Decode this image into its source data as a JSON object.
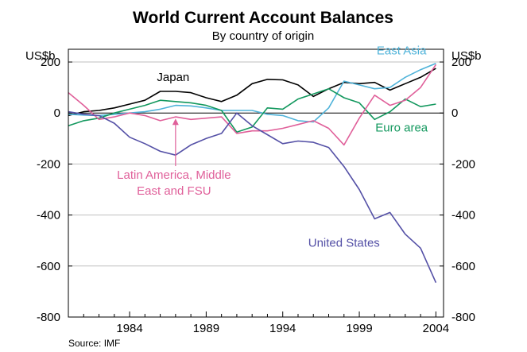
{
  "chart_data": {
    "type": "line",
    "title": "World Current Account Balances",
    "subtitle": "By country of origin",
    "left_unit": "US$b",
    "right_unit": "US$b",
    "source": "Source: IMF",
    "xlim": [
      1980,
      2004.5
    ],
    "ylim": [
      -800,
      250
    ],
    "x_ticks": [
      1984,
      1989,
      1994,
      1999,
      2004
    ],
    "y_ticks": [
      200,
      0,
      -200,
      -400,
      -600,
      -800
    ],
    "grid": true,
    "years": [
      1980,
      1981,
      1982,
      1983,
      1984,
      1985,
      1986,
      1987,
      1988,
      1989,
      1990,
      1991,
      1992,
      1993,
      1994,
      1995,
      1996,
      1997,
      1998,
      1999,
      2000,
      2001,
      2002,
      2003,
      2004
    ],
    "series": [
      {
        "name": "Japan",
        "color": "#000000",
        "values": [
          -10,
          5,
          10,
          20,
          35,
          50,
          85,
          85,
          80,
          60,
          45,
          70,
          115,
          132,
          130,
          110,
          65,
          95,
          120,
          115,
          120,
          90,
          115,
          140,
          175
        ]
      },
      {
        "name": "East Asia",
        "color": "#4fb3d9",
        "values": [
          -5,
          -8,
          -10,
          -5,
          0,
          5,
          15,
          30,
          28,
          20,
          10,
          10,
          10,
          -5,
          -10,
          -30,
          -35,
          20,
          125,
          110,
          95,
          100,
          140,
          170,
          195
        ]
      },
      {
        "name": "Euro area",
        "color": "#13985e",
        "values": [
          -50,
          -30,
          -20,
          0,
          15,
          30,
          50,
          45,
          40,
          30,
          10,
          -75,
          -55,
          20,
          15,
          55,
          75,
          95,
          60,
          40,
          -25,
          5,
          55,
          25,
          35
        ]
      },
      {
        "name": "Latin America, Middle East and FSU",
        "color": "#e0609a",
        "values": [
          80,
          30,
          -25,
          -15,
          0,
          -10,
          -30,
          -15,
          -25,
          -20,
          -15,
          -80,
          -70,
          -70,
          -60,
          -45,
          -30,
          -60,
          -125,
          -20,
          70,
          30,
          50,
          100,
          190
        ]
      },
      {
        "name": "United States",
        "color": "#5450a6",
        "values": [
          5,
          -5,
          -10,
          -40,
          -95,
          -120,
          -150,
          -165,
          -125,
          -100,
          -80,
          0,
          -50,
          -85,
          -120,
          -110,
          -115,
          -135,
          -210,
          -300,
          -415,
          -390,
          -475,
          -530,
          -665
        ]
      }
    ],
    "annotations": [
      {
        "text": [
          "Latin America, Middle",
          "East and FSU"
        ],
        "series": "Latin America, Middle East and FSU",
        "color": "#e0609a",
        "arrow": true
      },
      {
        "text": [
          "Japan"
        ],
        "series": "Japan",
        "color": "#000000"
      },
      {
        "text": [
          "East Asia"
        ],
        "series": "East Asia",
        "color": "#4fb3d9"
      },
      {
        "text": [
          "Euro area"
        ],
        "series": "Euro area",
        "color": "#13985e"
      },
      {
        "text": [
          "United States"
        ],
        "series": "United States",
        "color": "#5450a6"
      }
    ]
  }
}
